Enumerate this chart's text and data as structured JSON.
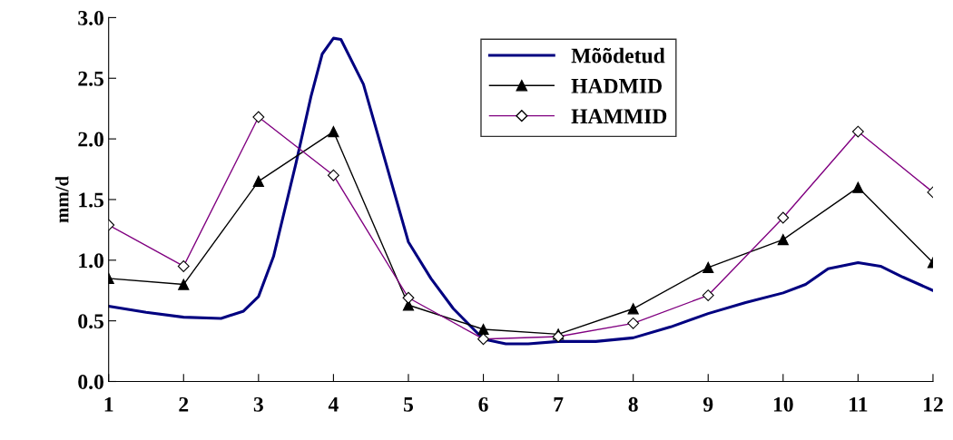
{
  "chart_data": {
    "type": "line",
    "ylabel": "mm/d",
    "xlim": [
      1,
      12
    ],
    "xticks": [
      1,
      2,
      3,
      4,
      5,
      6,
      7,
      8,
      9,
      10,
      11,
      12
    ],
    "ylim": [
      0,
      3
    ],
    "yticks": [
      {
        "value": 0,
        "label": "0.0"
      },
      {
        "value": 0.5,
        "label": "0.5"
      },
      {
        "value": 1,
        "label": "1.0"
      },
      {
        "value": 1.5,
        "label": "1.5"
      },
      {
        "value": 2,
        "label": "2.0"
      },
      {
        "value": 2.5,
        "label": "2.5"
      },
      {
        "value": 3,
        "label": "3.0"
      }
    ],
    "grid": false,
    "legend": "top",
    "line_style": "solid",
    "series": [
      {
        "name": "Mõõdetud",
        "color": "#000080",
        "marker": "none",
        "x": [
          1,
          1.5,
          2,
          2.5,
          2.8,
          3,
          3.2,
          3.5,
          3.7,
          3.85,
          4,
          4.1,
          4.4,
          4.7,
          5,
          5.3,
          5.6,
          6,
          6.3,
          6.6,
          7,
          7.5,
          8,
          8.5,
          9,
          9.5,
          10,
          10.3,
          10.6,
          11,
          11.3,
          11.6,
          12
        ],
        "values": [
          0.62,
          0.57,
          0.53,
          0.52,
          0.58,
          0.7,
          1.03,
          1.8,
          2.35,
          2.7,
          2.83,
          2.82,
          2.45,
          1.8,
          1.15,
          0.85,
          0.6,
          0.35,
          0.31,
          0.31,
          0.33,
          0.33,
          0.36,
          0.45,
          0.56,
          0.65,
          0.73,
          0.8,
          0.93,
          0.98,
          0.95,
          0.86,
          0.75
        ]
      },
      {
        "name": "HADMID",
        "color": "#000000",
        "marker": "triangle",
        "x": [
          1,
          2,
          3,
          4,
          5,
          6,
          7,
          8,
          9,
          10,
          11,
          12
        ],
        "values": [
          0.85,
          0.8,
          1.65,
          2.06,
          0.63,
          0.43,
          0.39,
          0.6,
          0.94,
          1.17,
          1.6,
          0.98
        ]
      },
      {
        "name": "HAMMID",
        "color": "#800080",
        "marker": "diamond",
        "x": [
          1,
          2,
          3,
          4,
          5,
          6,
          7,
          8,
          9,
          10,
          11,
          12
        ],
        "values": [
          1.29,
          0.95,
          2.18,
          1.7,
          0.69,
          0.35,
          0.37,
          0.48,
          0.71,
          1.35,
          2.06,
          1.56
        ]
      }
    ]
  }
}
